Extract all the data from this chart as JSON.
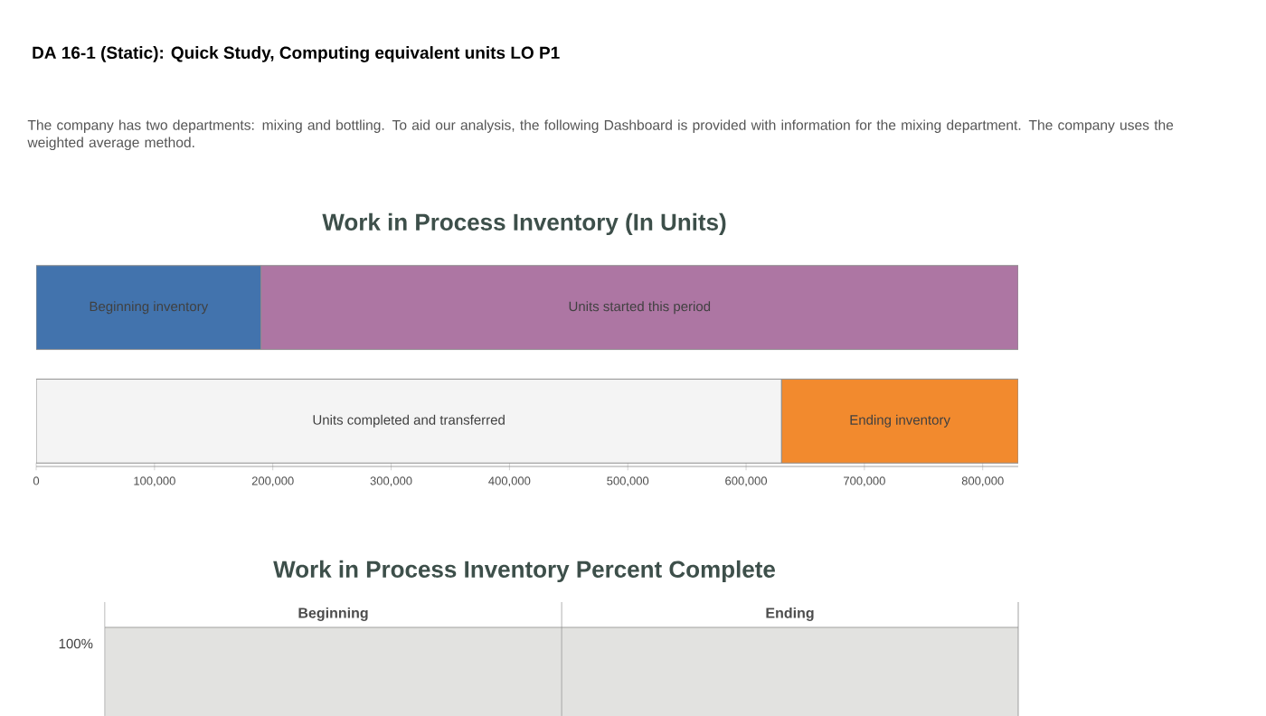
{
  "chart_data": [
    {
      "type": "bar",
      "orientation": "horizontal",
      "stacked": true,
      "title": "Work in Process Inventory (In Units)",
      "annotations": [
        "DA 16-1 (Static): Quick Study, Computing equivalent units LO P1",
        "The company has two departments: mixing and bottling. To aid our analysis, the following Dashboard is provided with information for the mixing department. The company uses the weighted average method."
      ],
      "categories": [
        null,
        null
      ],
      "series": [
        {
          "name": "Beginning inventory",
          "color": "#4273ad",
          "values": [
            190000,
            null
          ]
        },
        {
          "name": "Units started this period",
          "color": "#ad76a3",
          "values": [
            640000,
            null
          ]
        },
        {
          "name": "Units completed and transferred",
          "color": "#f4f4f4",
          "values": [
            null,
            630000
          ]
        },
        {
          "name": "Ending inventory",
          "color": "#f28a2e",
          "values": [
            null,
            200000
          ]
        }
      ],
      "xlim": [
        0,
        830000
      ],
      "xticks": [
        0,
        {
          "value": 100000,
          "label": "100,000"
        },
        {
          "value": 200000,
          "label": "200,000"
        },
        {
          "value": 300000,
          "label": "300,000"
        },
        {
          "value": 400000,
          "label": "400,000"
        },
        {
          "value": 500000,
          "label": "500,000"
        },
        {
          "value": 600000,
          "label": "600,000"
        },
        {
          "value": 700000,
          "label": "700,000"
        },
        {
          "value": 800000,
          "label": "800,000"
        }
      ]
    },
    {
      "type": "other",
      "title": "Work in Process Inventory Percent Complete",
      "categories": [
        "Beginning",
        "Ending"
      ],
      "annotations": [
        "100%"
      ]
    }
  ]
}
